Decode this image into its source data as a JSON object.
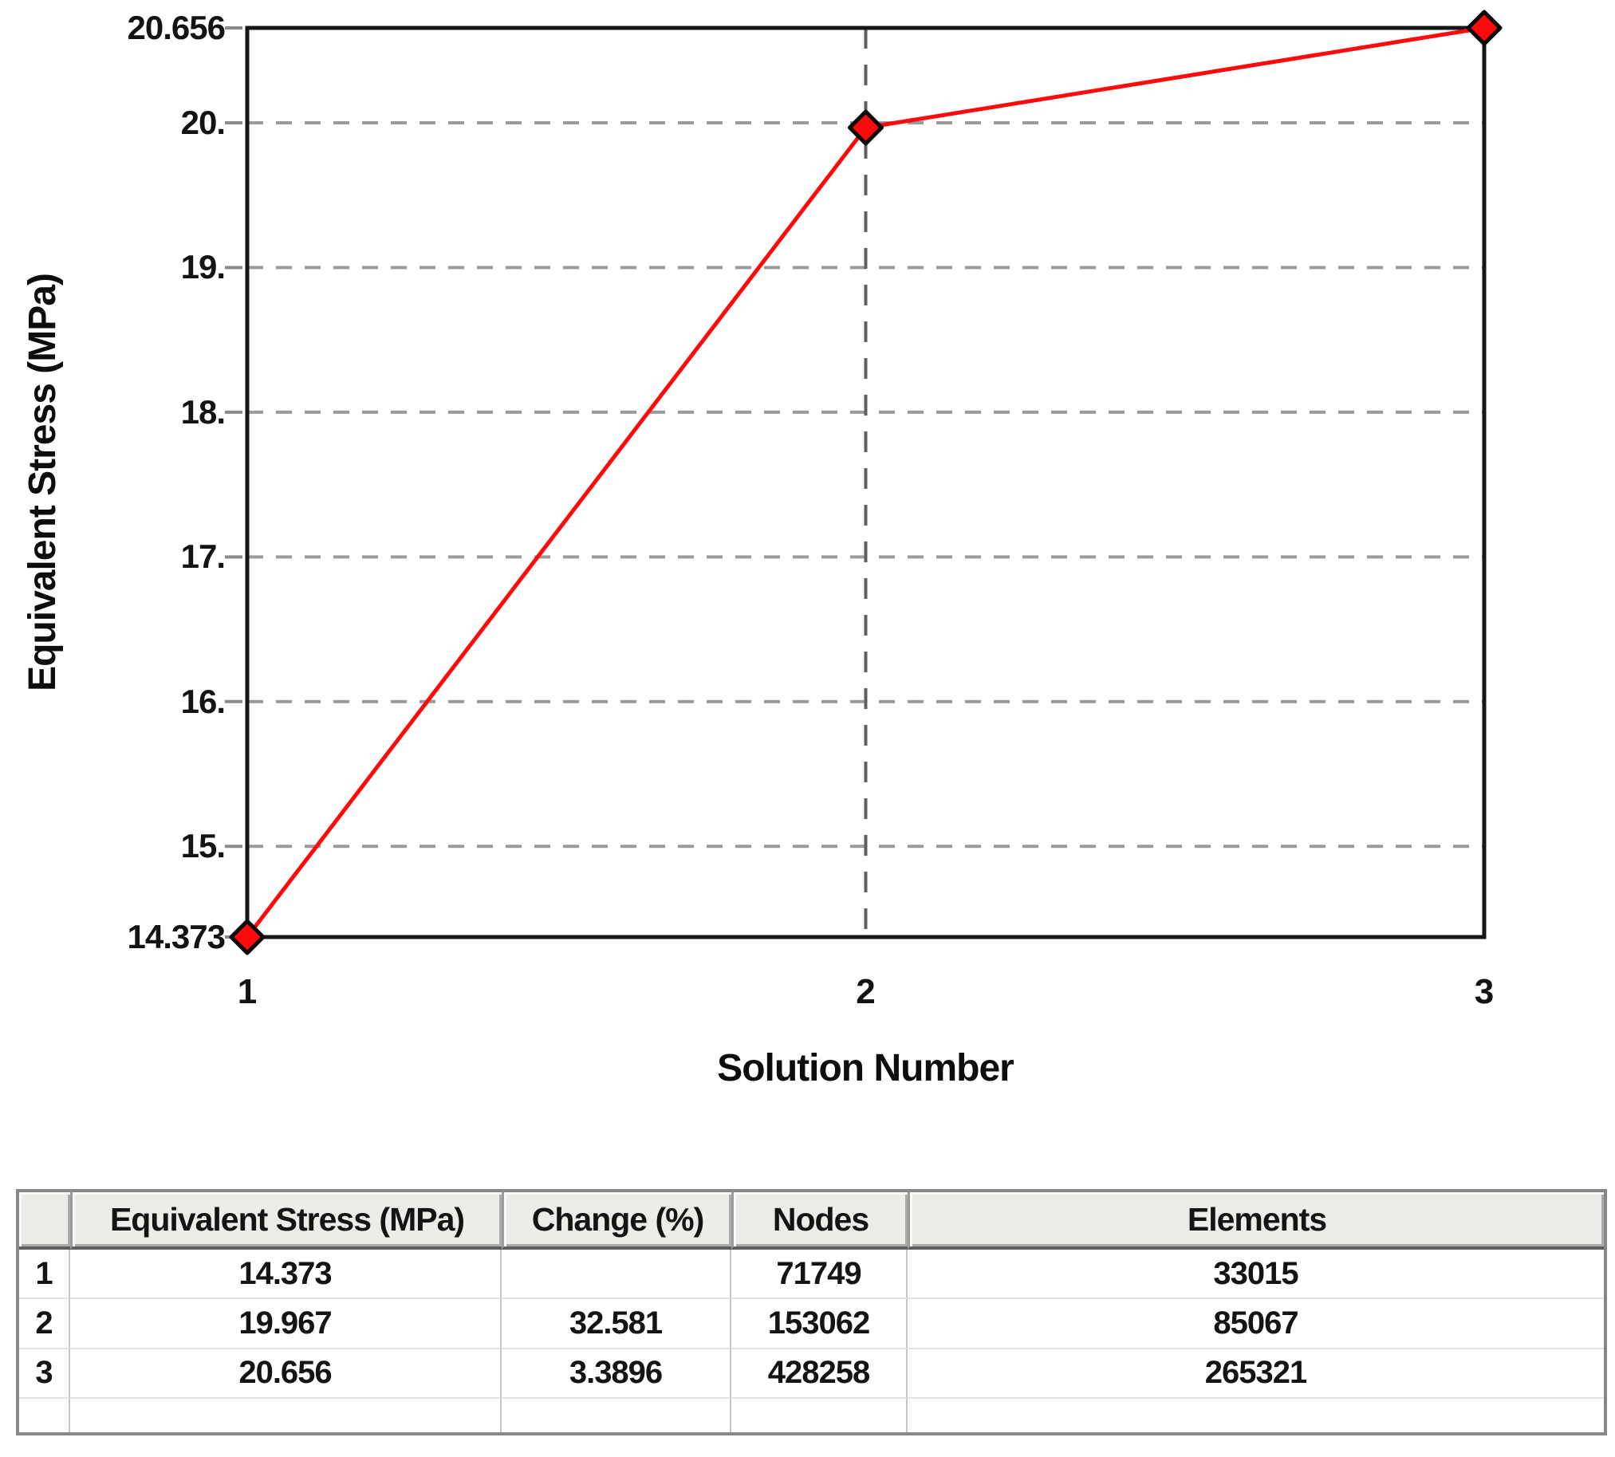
{
  "chart_data": {
    "type": "line",
    "title": "",
    "xlabel": "Solution Number",
    "ylabel": "Equivalent Stress (MPa)",
    "series": [
      {
        "name": "Equivalent Stress",
        "x": [
          1,
          2,
          3
        ],
        "y": [
          14.373,
          19.967,
          20.656
        ]
      }
    ],
    "xlim": [
      1,
      3
    ],
    "ylim": [
      14.373,
      20.656
    ],
    "xtick_values": [
      1,
      2,
      3
    ],
    "xtick_labels": [
      "1",
      "2",
      "3"
    ],
    "ytick_values": [
      20.656,
      20,
      19,
      18,
      17,
      16,
      15,
      14.373
    ],
    "ytick_labels": [
      "20.656",
      "20.",
      "19.",
      "18.",
      "17.",
      "16.",
      "15.",
      "14.373"
    ],
    "grid_y_values": [
      20,
      19,
      18,
      17,
      16,
      15
    ],
    "grid_x_values": [
      2
    ],
    "grid_on": true,
    "legend": "none",
    "line_color": "#ff0a0a",
    "marker_fill": "#ff0a0a",
    "marker_outline": "#0a0a0a",
    "grid_color_horizontal": "#9a9a9a",
    "grid_color_vertical": "#5f5f5f",
    "border_color": "#161616"
  },
  "table": {
    "columns": [
      "",
      "Equivalent Stress (MPa)",
      "Change (%)",
      "Nodes",
      "Elements"
    ],
    "rows": [
      {
        "index": "1",
        "stress": "14.373",
        "change": "",
        "nodes": "71749",
        "elements": "33015"
      },
      {
        "index": "2",
        "stress": "19.967",
        "change": "32.581",
        "nodes": "153062",
        "elements": "85067"
      },
      {
        "index": "3",
        "stress": "20.656",
        "change": "3.3896",
        "nodes": "428258",
        "elements": "265321"
      }
    ]
  }
}
